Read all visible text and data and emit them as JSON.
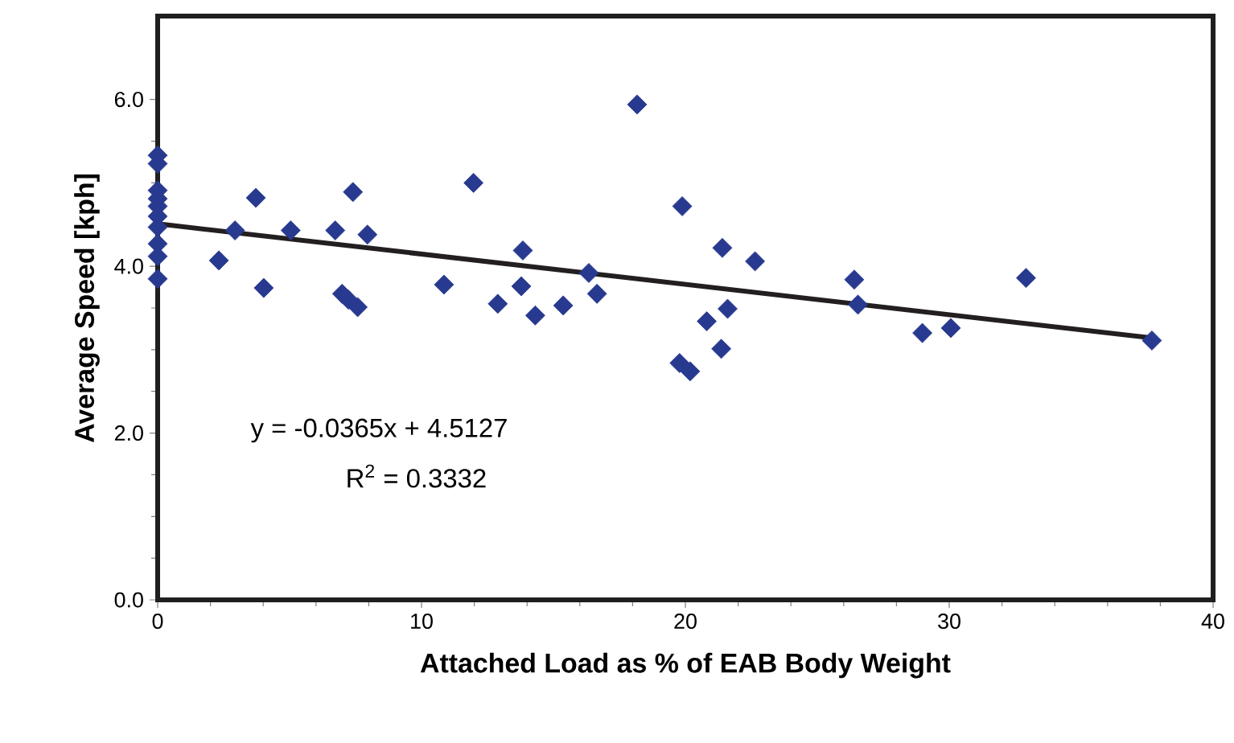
{
  "chart_data": {
    "type": "scatter",
    "xlabel": "Attached Load as % of EAB Body Weight",
    "ylabel": "Average Speed [kph]",
    "xlim": [
      0,
      40
    ],
    "xticks": [
      0,
      10,
      20,
      30,
      40
    ],
    "ylim": [
      0,
      7
    ],
    "yticks": [
      {
        "value": 0,
        "label": "0.0"
      },
      {
        "value": 2,
        "label": "2.0"
      },
      {
        "value": 4,
        "label": "4.0"
      },
      {
        "value": 6,
        "label": "6.0"
      }
    ],
    "marker": "diamond",
    "grid": false,
    "series": [
      {
        "color": "#283a8f",
        "x": [
          0,
          0,
          0,
          0,
          0,
          0,
          0,
          0,
          0,
          0,
          2.32,
          2.93,
          3.72,
          4.02,
          5.04,
          6.73,
          7.4,
          6.99,
          7.23,
          7.58,
          7.95,
          10.85,
          11.97,
          12.89,
          13.78,
          13.84,
          14.31,
          15.37,
          16.34,
          16.65,
          18.17,
          19.88,
          19.78,
          20.18,
          20.81,
          21.4,
          21.36,
          21.6,
          22.64,
          26.4,
          26.54,
          28.98,
          30.06,
          32.91,
          37.68
        ],
        "values": [
          5.33,
          5.23,
          4.91,
          4.81,
          4.72,
          4.6,
          4.47,
          4.27,
          4.12,
          3.85,
          4.07,
          4.43,
          4.82,
          3.74,
          4.43,
          4.43,
          4.89,
          3.67,
          3.6,
          3.51,
          4.38,
          3.78,
          5.0,
          3.55,
          3.76,
          4.19,
          3.41,
          3.53,
          3.92,
          3.67,
          5.94,
          4.72,
          2.84,
          2.74,
          3.34,
          4.22,
          3.01,
          3.49,
          4.06,
          3.84,
          3.54,
          3.2,
          3.26,
          3.86,
          3.11
        ]
      },
      {
        "type": "line",
        "color": "#231f20",
        "marker": "none",
        "x": [
          0,
          37.68
        ],
        "values": [
          4.51,
          3.14
        ]
      }
    ],
    "annotations": [
      "y = -0.0365x + 4.5127",
      "R$^{2}$ = 0.3332"
    ]
  }
}
